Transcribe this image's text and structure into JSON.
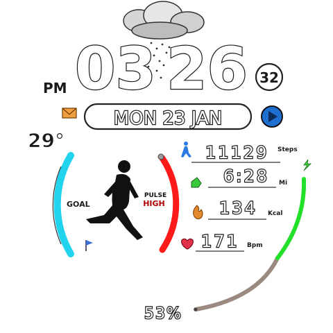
{
  "time": {
    "hours": "03",
    "minutes": "26",
    "ampm": "PM",
    "seconds": "32"
  },
  "date": "MON 23 JAN",
  "weather": {
    "temperature": "29°",
    "condition_icon": "rain-cloud-icon"
  },
  "left_ring": {
    "goal_label": "GOAL",
    "zone_line1": "PULSE",
    "zone_line2": "HIGH",
    "goal_color": "#22d3ee",
    "zone_color": "#ff1a1a"
  },
  "stats": {
    "steps": {
      "value": "11129",
      "unit": "Steps",
      "icon": "walker-icon"
    },
    "distance": {
      "value": "6:28",
      "unit": "Mi",
      "icon": "shoe-icon"
    },
    "calories": {
      "value": "134",
      "unit": "Kcal",
      "icon": "flame-icon"
    },
    "heart_rate": {
      "value": "171",
      "unit": "Bpm",
      "icon": "heart-icon"
    }
  },
  "battery": {
    "percent_label": "53%",
    "level": 0.53,
    "charged_color": "#22e02a",
    "empty_color": "#9a8a80"
  }
}
